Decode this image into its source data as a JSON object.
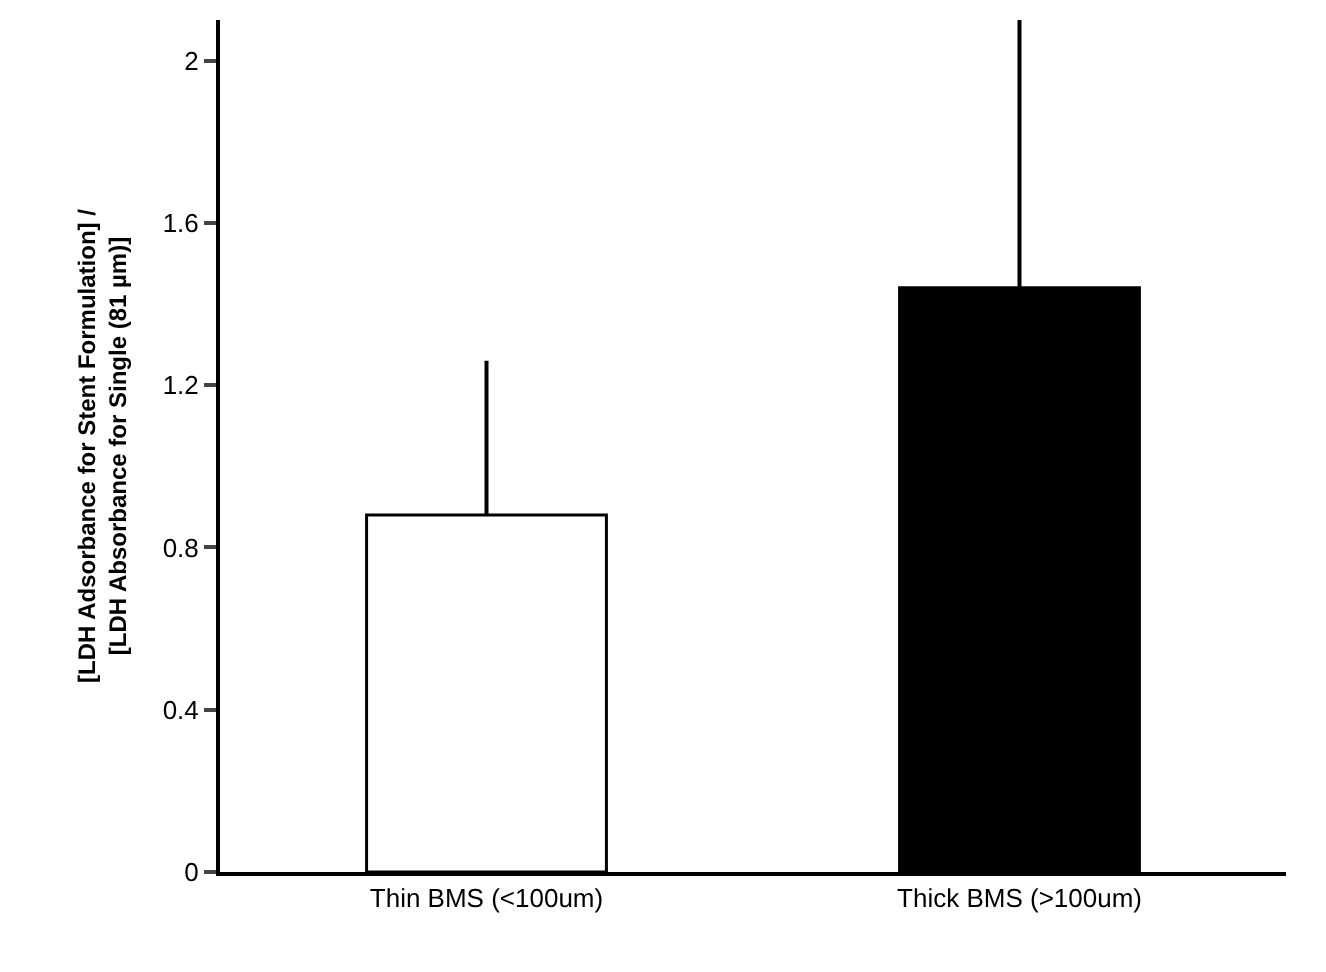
{
  "chart_data": {
    "type": "bar",
    "ylabel": "[LDH Adsorbance for Stent Formulation] / [LDH Absorbance for Single (81 µm)]",
    "categories": [
      "Thin BMS (<100um)",
      "Thick BMS (>100um)"
    ],
    "values": [
      0.88,
      1.44
    ],
    "colors": [
      "#ffffff",
      "#000000"
    ],
    "errors": [
      [
        0.88,
        1.26
      ],
      [
        1.44,
        2.1
      ]
    ],
    "ylim": [
      0,
      2.1
    ],
    "yticks": [
      0,
      0.4,
      0.8,
      1.2,
      1.6,
      2
    ]
  }
}
